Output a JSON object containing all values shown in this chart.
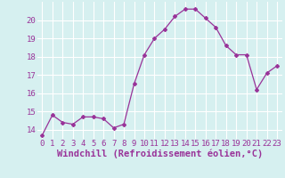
{
  "x": [
    0,
    1,
    2,
    3,
    4,
    5,
    6,
    7,
    8,
    9,
    10,
    11,
    12,
    13,
    14,
    15,
    16,
    17,
    18,
    19,
    20,
    21,
    22,
    23
  ],
  "y": [
    13.7,
    14.8,
    14.4,
    14.3,
    14.7,
    14.7,
    14.6,
    14.1,
    14.3,
    16.5,
    18.1,
    19.0,
    19.5,
    20.2,
    20.6,
    20.6,
    20.1,
    19.6,
    18.6,
    18.1,
    18.1,
    16.2,
    17.1,
    17.5
  ],
  "xlabel": "Windchill (Refroidissement éolien,°C)",
  "xlim": [
    -0.5,
    23.5
  ],
  "ylim": [
    13.5,
    21.0
  ],
  "yticks": [
    14,
    15,
    16,
    17,
    18,
    19,
    20
  ],
  "xticks": [
    0,
    1,
    2,
    3,
    4,
    5,
    6,
    7,
    8,
    9,
    10,
    11,
    12,
    13,
    14,
    15,
    16,
    17,
    18,
    19,
    20,
    21,
    22,
    23
  ],
  "line_color": "#993399",
  "marker": "D",
  "marker_size": 2.0,
  "bg_color": "#d6f0f0",
  "grid_color": "#ffffff",
  "axis_label_color": "#993399",
  "tick_label_color": "#993399",
  "xlabel_fontsize": 7.5,
  "tick_fontsize": 6.5
}
